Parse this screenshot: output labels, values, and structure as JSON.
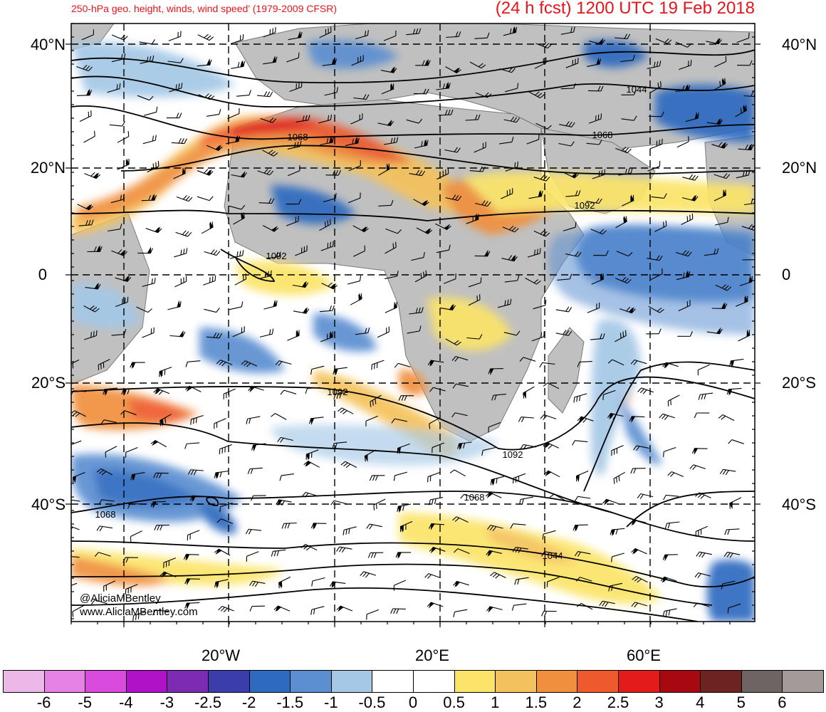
{
  "header": {
    "title_left": "250-hPa geo. height, winds, wind speed’ (1979-2009 CFSR)",
    "title_right": "(24 h fcst) 1200 UTC 19 Feb 2018"
  },
  "axes": {
    "lat_labels_left": [
      "40°N",
      "20°N",
      "0",
      "20°S",
      "40°S"
    ],
    "lat_labels_right": [
      "40°N",
      "20°N",
      "0",
      "20°S",
      "40°S"
    ],
    "lon_labels": [
      "20°W",
      "20°E",
      "60°E"
    ]
  },
  "contour_labels": [
    "1068",
    "1092",
    "1092",
    "1092",
    "1092",
    "1068",
    "1068",
    "1044",
    "1044",
    "1068"
  ],
  "credit": {
    "line1": "@AliciaMBentley",
    "line2": "www.AliciaMBentley.com"
  },
  "colorbar": {
    "labels": [
      "-6",
      "-5",
      "-4",
      "-3",
      "-2.5",
      "-2",
      "-1.5",
      "-1",
      "-0.5",
      "0",
      "0.5",
      "1",
      "1.5",
      "2",
      "2.5",
      "3",
      "4",
      "5",
      "6"
    ],
    "colors": [
      "#ecb8e8",
      "#e682e6",
      "#d84bdc",
      "#b012c8",
      "#7d2bb3",
      "#3a3dab",
      "#2e6bc0",
      "#5c8fd1",
      "#a4c8e6",
      "#ffffff",
      "#ffffff",
      "#fbe469",
      "#f4c25c",
      "#f0903e",
      "#ee5a2e",
      "#e31b1b",
      "#a8080f",
      "#6e2323",
      "#6e6463",
      "#a49a99"
    ]
  },
  "map_colors": {
    "land": "#c0c0c0",
    "contour": "#000000",
    "lat_lon_grid": "#000000"
  }
}
